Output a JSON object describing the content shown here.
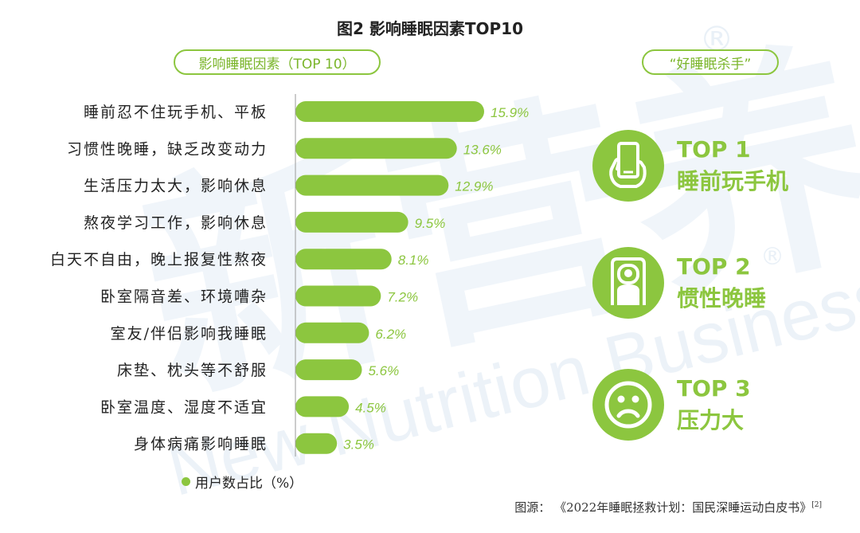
{
  "title": "图2  影响睡眠因素TOP10",
  "left_header": "影响睡眠因素（TOP 10）",
  "right_header": "“好睡眠杀手”",
  "chart_data": {
    "type": "bar",
    "orientation": "horizontal",
    "categories": [
      "睡前忍不住玩手机、平板",
      "习惯性晚睡，缺乏改变动力",
      "生活压力太大，影响休息",
      "熬夜学习工作，影响休息",
      "白天不自由，晚上报复性熬夜",
      "卧室隔音差、环境嘈杂",
      "室友/伴侣影响我睡眠",
      "床垫、枕头等不舒服",
      "卧室温度、湿度不适宜",
      "身体病痛影响睡眠"
    ],
    "values": [
      15.9,
      13.6,
      12.9,
      9.5,
      8.1,
      7.2,
      6.2,
      5.6,
      4.5,
      3.5
    ],
    "value_labels": [
      "15.9%",
      "13.6%",
      "12.9%",
      "9.5%",
      "8.1%",
      "7.2%",
      "6.2%",
      "5.6%",
      "4.5%",
      "3.5%"
    ],
    "legend": "用户数占比（%）",
    "color": "#8cc63f",
    "xlim": [
      0,
      16
    ]
  },
  "top_items": [
    {
      "rank": "TOP 1",
      "label": "睡前玩手机",
      "icon": "phone-hand-icon"
    },
    {
      "rank": "TOP 2",
      "label": "惯性晚睡",
      "icon": "person-door-icon"
    },
    {
      "rank": "TOP 3",
      "label": "压力大",
      "icon": "sad-face-icon"
    }
  ],
  "source": "图源：  《2022年睡眠拯救计划：国民深睡运动白皮书》",
  "source_ref": "[2]",
  "watermark_cn": "新营养",
  "watermark_en": "New Nutrition Business",
  "watermark_mark": "®"
}
